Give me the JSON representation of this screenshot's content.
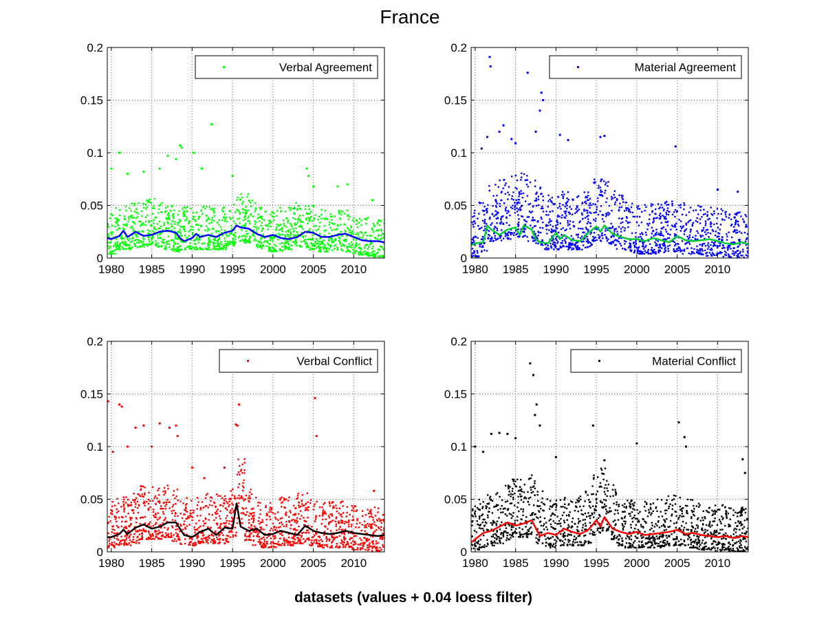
{
  "title": "France",
  "xlabel": "datasets (values + 0.04 loess filter)",
  "chart_data": [
    {
      "type": "scatter",
      "legend": "Verbal Agreement",
      "legend_position": "top-right",
      "point_color": "#00ff00",
      "trend_color": "#0000ff",
      "grid": true,
      "xlim": [
        1979.5,
        2013.8
      ],
      "ylim": [
        0,
        0.2
      ],
      "xticks": [
        "1980",
        "1985",
        "1990",
        "1995",
        "2000",
        "2005",
        "2010"
      ],
      "yticks": [
        "0",
        "0.05",
        "0.1",
        "0.15",
        "0.2"
      ],
      "cloud": {
        "base": [
          0.018,
          0.022,
          0.022,
          0.024,
          0.025,
          0.026,
          0.024,
          0.022,
          0.02,
          0.022,
          0.022,
          0.022,
          0.022,
          0.022,
          0.022,
          0.026,
          0.03,
          0.028,
          0.024,
          0.021,
          0.02,
          0.021,
          0.022,
          0.024,
          0.024,
          0.022,
          0.02,
          0.02,
          0.021,
          0.02,
          0.018,
          0.017,
          0.016,
          0.015,
          0.015
        ],
        "spread": 0.022
      },
      "outliers": [
        [
          1980.0,
          0.085
        ],
        [
          1981.0,
          0.1
        ],
        [
          1982.0,
          0.08
        ],
        [
          1984.0,
          0.082
        ],
        [
          1986.0,
          0.085
        ],
        [
          1987.0,
          0.097
        ],
        [
          1988.0,
          0.094
        ],
        [
          1988.5,
          0.107
        ],
        [
          1988.7,
          0.105
        ],
        [
          1990.2,
          0.1
        ],
        [
          1991.2,
          0.085
        ],
        [
          1992.4,
          0.127
        ],
        [
          1995.0,
          0.078
        ],
        [
          2004.2,
          0.085
        ],
        [
          2004.4,
          0.078
        ],
        [
          2005.0,
          0.068
        ],
        [
          2008.0,
          0.068
        ],
        [
          2009.2,
          0.07
        ],
        [
          2012.3,
          0.055
        ]
      ],
      "trend": {
        "x": [
          1979.5,
          1980,
          1981,
          1981.5,
          1982,
          1983,
          1984,
          1985,
          1986,
          1987,
          1988,
          1988.5,
          1989,
          1990,
          1990.5,
          1991,
          1992,
          1993,
          1994,
          1995,
          1995.5,
          1996,
          1997,
          1998,
          1999,
          2000,
          2001,
          2002,
          2003,
          2004,
          2005,
          2006,
          2007,
          2008,
          2009,
          2010,
          2011,
          2012,
          2013,
          2013.8
        ],
        "y": [
          0.019,
          0.018,
          0.021,
          0.026,
          0.02,
          0.025,
          0.021,
          0.022,
          0.025,
          0.026,
          0.024,
          0.019,
          0.016,
          0.019,
          0.023,
          0.02,
          0.022,
          0.02,
          0.024,
          0.026,
          0.031,
          0.029,
          0.028,
          0.023,
          0.02,
          0.022,
          0.019,
          0.018,
          0.02,
          0.025,
          0.024,
          0.02,
          0.02,
          0.022,
          0.023,
          0.02,
          0.017,
          0.016,
          0.016,
          0.015
        ]
      }
    },
    {
      "type": "scatter",
      "legend": "Material Agreement",
      "legend_position": "top-right",
      "point_color": "#0000ff",
      "trend_color": "#00cc33",
      "grid": true,
      "xlim": [
        1979.5,
        2013.8
      ],
      "ylim": [
        0,
        0.2
      ],
      "xticks": [
        "1980",
        "1985",
        "1990",
        "1995",
        "2000",
        "2005",
        "2010"
      ],
      "yticks": [
        "0",
        "0.05",
        "0.1",
        "0.15",
        "0.2"
      ],
      "cloud": {
        "base": [
          0.015,
          0.02,
          0.03,
          0.03,
          0.032,
          0.034,
          0.034,
          0.03,
          0.026,
          0.022,
          0.022,
          0.024,
          0.022,
          0.022,
          0.024,
          0.03,
          0.03,
          0.026,
          0.022,
          0.02,
          0.018,
          0.018,
          0.018,
          0.019,
          0.02,
          0.02,
          0.018,
          0.017,
          0.017,
          0.016,
          0.016,
          0.015,
          0.014,
          0.014,
          0.013
        ],
        "spread": 0.032
      },
      "outliers": [
        [
          1980.8,
          0.104
        ],
        [
          1981.5,
          0.115
        ],
        [
          1981.8,
          0.191
        ],
        [
          1981.9,
          0.182
        ],
        [
          1983.0,
          0.12
        ],
        [
          1983.5,
          0.126
        ],
        [
          1984.5,
          0.113
        ],
        [
          1985.0,
          0.109
        ],
        [
          1986.5,
          0.176
        ],
        [
          1987.5,
          0.12
        ],
        [
          1988.0,
          0.14
        ],
        [
          1988.2,
          0.157
        ],
        [
          1988.4,
          0.15
        ],
        [
          1990.5,
          0.117
        ],
        [
          1991.5,
          0.112
        ],
        [
          1995.5,
          0.115
        ],
        [
          1996.0,
          0.116
        ],
        [
          2004.8,
          0.106
        ],
        [
          2010.0,
          0.065
        ],
        [
          2012.5,
          0.063
        ]
      ],
      "trend": {
        "x": [
          1979.5,
          1980,
          1981,
          1981.5,
          1982,
          1983,
          1984,
          1985,
          1985.5,
          1986,
          1987,
          1987.5,
          1988,
          1989,
          1990,
          1990.5,
          1991,
          1992,
          1993,
          1994,
          1995,
          1995.5,
          1996,
          1997,
          1998,
          1999,
          2000,
          2001,
          2002,
          2003,
          2004,
          2005,
          2006,
          2007,
          2008,
          2009,
          2010,
          2011,
          2012,
          2013,
          2013.8
        ],
        "y": [
          0.012,
          0.014,
          0.015,
          0.031,
          0.027,
          0.022,
          0.027,
          0.029,
          0.022,
          0.031,
          0.027,
          0.018,
          0.015,
          0.014,
          0.024,
          0.018,
          0.022,
          0.017,
          0.016,
          0.024,
          0.03,
          0.025,
          0.031,
          0.023,
          0.02,
          0.018,
          0.018,
          0.016,
          0.019,
          0.017,
          0.015,
          0.021,
          0.017,
          0.016,
          0.017,
          0.018,
          0.016,
          0.014,
          0.013,
          0.015,
          0.013
        ]
      }
    },
    {
      "type": "scatter",
      "legend": "Verbal Conflict",
      "legend_position": "top-right",
      "point_color": "#ff0000",
      "trend_color": "#000000",
      "grid": true,
      "xlim": [
        1979.5,
        2013.8
      ],
      "ylim": [
        0,
        0.2
      ],
      "xticks": [
        "1980",
        "1985",
        "1990",
        "1995",
        "2000",
        "2005",
        "2010"
      ],
      "yticks": [
        "0",
        "0.05",
        "0.1",
        "0.15",
        "0.2"
      ],
      "cloud": {
        "base": [
          0.018,
          0.02,
          0.02,
          0.022,
          0.026,
          0.026,
          0.026,
          0.028,
          0.024,
          0.02,
          0.02,
          0.022,
          0.022,
          0.022,
          0.022,
          0.028,
          0.04,
          0.025,
          0.02,
          0.018,
          0.018,
          0.02,
          0.02,
          0.022,
          0.022,
          0.02,
          0.018,
          0.018,
          0.018,
          0.018,
          0.016,
          0.016,
          0.015,
          0.015,
          0.015
        ],
        "spread": 0.028
      },
      "outliers": [
        [
          1979.6,
          0.143
        ],
        [
          1980.2,
          0.095
        ],
        [
          1981.0,
          0.14
        ],
        [
          1981.3,
          0.138
        ],
        [
          1982.0,
          0.1
        ],
        [
          1983.0,
          0.118
        ],
        [
          1984.0,
          0.12
        ],
        [
          1985.0,
          0.1
        ],
        [
          1986.0,
          0.122
        ],
        [
          1987.2,
          0.118
        ],
        [
          1988.0,
          0.12
        ],
        [
          1988.2,
          0.11
        ],
        [
          1990.0,
          0.08
        ],
        [
          1991.5,
          0.07
        ],
        [
          1994.0,
          0.08
        ],
        [
          1995.4,
          0.121
        ],
        [
          1995.6,
          0.12
        ],
        [
          1995.8,
          0.14
        ],
        [
          2005.2,
          0.146
        ],
        [
          2005.4,
          0.11
        ],
        [
          2012.5,
          0.058
        ]
      ],
      "trend": {
        "x": [
          1979.5,
          1980,
          1981,
          1981.5,
          1982,
          1983,
          1984,
          1985,
          1986,
          1987,
          1988,
          1989,
          1990,
          1991,
          1992,
          1993,
          1994,
          1995,
          1995.5,
          1996,
          1997,
          1998,
          1999,
          2000,
          2001,
          2002,
          2003,
          2004,
          2005,
          2006,
          2007,
          2008,
          2009,
          2010,
          2011,
          2012,
          2013,
          2013.8
        ],
        "y": [
          0.014,
          0.014,
          0.017,
          0.021,
          0.017,
          0.023,
          0.026,
          0.022,
          0.024,
          0.028,
          0.028,
          0.016,
          0.014,
          0.019,
          0.022,
          0.016,
          0.023,
          0.022,
          0.046,
          0.024,
          0.02,
          0.022,
          0.016,
          0.017,
          0.02,
          0.018,
          0.016,
          0.025,
          0.02,
          0.018,
          0.017,
          0.018,
          0.02,
          0.018,
          0.017,
          0.016,
          0.015,
          0.016
        ]
      }
    },
    {
      "type": "scatter",
      "legend": "Material Conflict",
      "legend_position": "top-right",
      "point_color": "#000000",
      "trend_color": "#ff0000",
      "grid": true,
      "xlim": [
        1979.5,
        2013.8
      ],
      "ylim": [
        0,
        0.2
      ],
      "xticks": [
        "1980",
        "1985",
        "1990",
        "1995",
        "2000",
        "2005",
        "2010"
      ],
      "yticks": [
        "0",
        "0.05",
        "0.1",
        "0.15",
        "0.2"
      ],
      "cloud": {
        "base": [
          0.016,
          0.018,
          0.02,
          0.022,
          0.025,
          0.028,
          0.028,
          0.03,
          0.022,
          0.018,
          0.018,
          0.02,
          0.02,
          0.02,
          0.022,
          0.03,
          0.034,
          0.026,
          0.02,
          0.018,
          0.018,
          0.018,
          0.018,
          0.018,
          0.02,
          0.02,
          0.02,
          0.018,
          0.016,
          0.016,
          0.015,
          0.015,
          0.014,
          0.014,
          0.014
        ],
        "spread": 0.03
      },
      "outliers": [
        [
          1980.0,
          0.1
        ],
        [
          1981.0,
          0.095
        ],
        [
          1982.0,
          0.112
        ],
        [
          1983.0,
          0.113
        ],
        [
          1984.0,
          0.112
        ],
        [
          1985.0,
          0.108
        ],
        [
          1986.8,
          0.179
        ],
        [
          1987.2,
          0.168
        ],
        [
          1987.4,
          0.13
        ],
        [
          1987.6,
          0.14
        ],
        [
          1988.0,
          0.12
        ],
        [
          1990.0,
          0.09
        ],
        [
          1994.6,
          0.12
        ],
        [
          1996.0,
          0.087
        ],
        [
          2000.0,
          0.103
        ],
        [
          2005.2,
          0.123
        ],
        [
          2005.9,
          0.109
        ],
        [
          2006.1,
          0.1
        ],
        [
          2013.1,
          0.088
        ],
        [
          2013.4,
          0.075
        ]
      ],
      "trend": {
        "x": [
          1979.5,
          1980,
          1981,
          1982,
          1983,
          1984,
          1985,
          1986,
          1987,
          1988,
          1989,
          1990,
          1991,
          1992,
          1993,
          1994,
          1995,
          1995.5,
          1996,
          1997,
          1998,
          1999,
          2000,
          2001,
          2002,
          2003,
          2004,
          2005,
          2006,
          2007,
          2008,
          2009,
          2010,
          2011,
          2012,
          2013,
          2013.8
        ],
        "y": [
          0.009,
          0.012,
          0.018,
          0.02,
          0.024,
          0.028,
          0.025,
          0.027,
          0.03,
          0.015,
          0.018,
          0.016,
          0.022,
          0.019,
          0.017,
          0.021,
          0.03,
          0.024,
          0.033,
          0.022,
          0.019,
          0.017,
          0.019,
          0.016,
          0.017,
          0.018,
          0.019,
          0.021,
          0.017,
          0.018,
          0.016,
          0.015,
          0.014,
          0.015,
          0.013,
          0.015,
          0.014
        ]
      }
    }
  ]
}
